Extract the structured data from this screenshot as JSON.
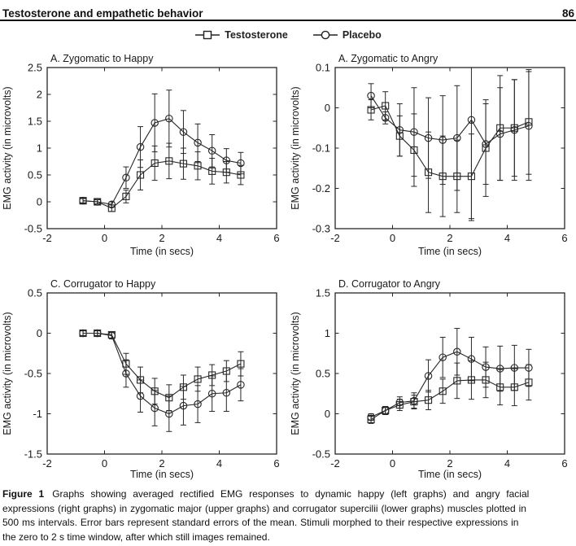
{
  "page": {
    "header": {
      "title": "Testosterone and empathetic behavior",
      "page_number": "86"
    },
    "legend": [
      {
        "label": "Testosterone",
        "marker": "square"
      },
      {
        "label": "Placebo",
        "marker": "circle"
      }
    ],
    "caption": {
      "label": "Figure 1",
      "lines": [
        "Graphs showing averaged rectified EMG responses to dynamic happy (left graphs) and angry facial",
        "expressions (right graphs) in zygomatic major (upper graphs) and corrugator supercilii (lower graphs) muscles plotted in",
        "500 ms intervals. Error bars represent standard errors of the mean. Stimuli morphed to their respective expressions in",
        "the zero to 2 s time window, after which still images remained."
      ]
    }
  },
  "chart_data": [
    {
      "type": "line",
      "title": "A. Zygomatic to Happy",
      "xlabel": "Time (in secs)",
      "ylabel": "EMG activity (in microvolts)",
      "xlim": [
        -2,
        6
      ],
      "ylim": [
        -0.5,
        2.5
      ],
      "xticks": [
        -2,
        0,
        2,
        4,
        6
      ],
      "yticks": [
        2.5,
        2,
        1.5,
        1,
        0.5,
        0,
        -0.5
      ],
      "ytick_labels": [
        "2.5",
        "2",
        "1.5",
        "1",
        "0.5",
        "0",
        "-0.5"
      ],
      "x": [
        -0.75,
        -0.25,
        0.25,
        0.75,
        1.25,
        1.75,
        2.25,
        2.75,
        3.25,
        3.75,
        4.25,
        4.75
      ],
      "series": [
        {
          "name": "Testosterone",
          "marker": "square",
          "values": [
            0.02,
            0.0,
            -0.12,
            0.1,
            0.5,
            0.72,
            0.76,
            0.71,
            0.67,
            0.57,
            0.55,
            0.5
          ],
          "errors": [
            0.05,
            0.04,
            0.06,
            0.12,
            0.28,
            0.32,
            0.33,
            0.29,
            0.26,
            0.24,
            0.2,
            0.18
          ]
        },
        {
          "name": "Placebo",
          "marker": "circle",
          "values": [
            0.02,
            0.0,
            -0.05,
            0.45,
            1.02,
            1.47,
            1.55,
            1.3,
            1.1,
            0.95,
            0.77,
            0.72
          ],
          "errors": [
            0.04,
            0.04,
            0.05,
            0.2,
            0.38,
            0.54,
            0.53,
            0.4,
            0.35,
            0.3,
            0.22,
            0.2
          ]
        }
      ]
    },
    {
      "type": "line",
      "title": "A. Zygomatic to Angry",
      "xlabel": "Time (in secs)",
      "ylabel": "EMG activity (in microvolts)",
      "xlim": [
        -2,
        6
      ],
      "ylim": [
        -0.3,
        0.1
      ],
      "xticks": [
        -2,
        0,
        2,
        4,
        6
      ],
      "yticks": [
        0.1,
        0,
        -0.1,
        -0.2,
        -0.3
      ],
      "ytick_labels": [
        "0.1",
        "0",
        "-0.1",
        "-0.2",
        "-0.3"
      ],
      "x": [
        -0.75,
        -0.25,
        0.25,
        0.75,
        1.25,
        1.75,
        2.25,
        2.75,
        3.25,
        3.75,
        4.25,
        4.75
      ],
      "series": [
        {
          "name": "Testosterone",
          "marker": "square",
          "values": [
            -0.005,
            0.005,
            -0.07,
            -0.105,
            -0.16,
            -0.17,
            -0.17,
            -0.17,
            -0.1,
            -0.05,
            -0.05,
            -0.035
          ],
          "errors": [
            0.025,
            0.035,
            0.05,
            0.09,
            0.1,
            0.1,
            0.09,
            0.105,
            0.12,
            0.13,
            0.12,
            0.13
          ]
        },
        {
          "name": "Placebo",
          "marker": "circle",
          "values": [
            0.03,
            -0.025,
            -0.055,
            -0.06,
            -0.075,
            -0.08,
            -0.075,
            -0.03,
            -0.09,
            -0.065,
            -0.055,
            -0.045
          ],
          "errors": [
            0.03,
            0.015,
            0.065,
            0.11,
            0.1,
            0.11,
            0.13,
            0.25,
            0.1,
            0.115,
            0.125,
            0.135
          ]
        }
      ]
    },
    {
      "type": "line",
      "title": "C. Corrugator to Happy",
      "xlabel": "Time (in secs)",
      "ylabel": "EMG activity (in microvolts)",
      "xlim": [
        -2,
        6
      ],
      "ylim": [
        -1.5,
        0.5
      ],
      "xticks": [
        -2,
        0,
        2,
        4,
        6
      ],
      "yticks": [
        0.5,
        0,
        -0.5,
        -1,
        -1.5
      ],
      "ytick_labels": [
        "0.5",
        "0",
        "-0.5",
        "-1",
        "-1.5"
      ],
      "x": [
        -0.75,
        -0.25,
        0.25,
        0.75,
        1.25,
        1.75,
        2.25,
        2.75,
        3.25,
        3.75,
        4.25,
        4.75
      ],
      "series": [
        {
          "name": "Testosterone",
          "marker": "square",
          "values": [
            0.0,
            0.0,
            -0.02,
            -0.38,
            -0.58,
            -0.72,
            -0.8,
            -0.67,
            -0.57,
            -0.52,
            -0.47,
            -0.38
          ],
          "errors": [
            0.03,
            0.03,
            0.04,
            0.13,
            0.16,
            0.16,
            0.16,
            0.15,
            0.15,
            0.13,
            0.13,
            0.15
          ]
        },
        {
          "name": "Placebo",
          "marker": "circle",
          "values": [
            0.0,
            0.0,
            -0.03,
            -0.5,
            -0.78,
            -0.93,
            -1.0,
            -0.9,
            -0.88,
            -0.75,
            -0.74,
            -0.64
          ],
          "errors": [
            0.03,
            0.03,
            0.04,
            0.17,
            0.2,
            0.22,
            0.22,
            0.24,
            0.23,
            0.22,
            0.23,
            0.2
          ]
        }
      ]
    },
    {
      "type": "line",
      "title": "D. Corrugator to Angry",
      "xlabel": "Time (in secs)",
      "ylabel": "EMG activity (in microvolts)",
      "xlim": [
        -2,
        6
      ],
      "ylim": [
        -0.5,
        1.5
      ],
      "xticks": [
        -2,
        0,
        2,
        4,
        6
      ],
      "yticks": [
        1.5,
        1,
        0.5,
        0,
        -0.5
      ],
      "ytick_labels": [
        "1.5",
        "1",
        "0.5",
        "0",
        "-0.5"
      ],
      "x": [
        -0.75,
        -0.25,
        0.25,
        0.75,
        1.25,
        1.75,
        2.25,
        2.75,
        3.25,
        3.75,
        4.25,
        4.75
      ],
      "series": [
        {
          "name": "Testosterone",
          "marker": "square",
          "values": [
            -0.07,
            0.04,
            0.11,
            0.15,
            0.17,
            0.28,
            0.41,
            0.42,
            0.42,
            0.33,
            0.33,
            0.39
          ],
          "errors": [
            0.05,
            0.05,
            0.07,
            0.08,
            0.12,
            0.15,
            0.22,
            0.24,
            0.22,
            0.22,
            0.23,
            0.22
          ]
        },
        {
          "name": "Placebo",
          "marker": "circle",
          "values": [
            -0.04,
            0.04,
            0.14,
            0.16,
            0.47,
            0.7,
            0.77,
            0.68,
            0.58,
            0.56,
            0.57,
            0.57
          ],
          "errors": [
            0.04,
            0.05,
            0.07,
            0.1,
            0.2,
            0.25,
            0.29,
            0.27,
            0.25,
            0.28,
            0.28,
            0.23
          ]
        }
      ]
    }
  ]
}
